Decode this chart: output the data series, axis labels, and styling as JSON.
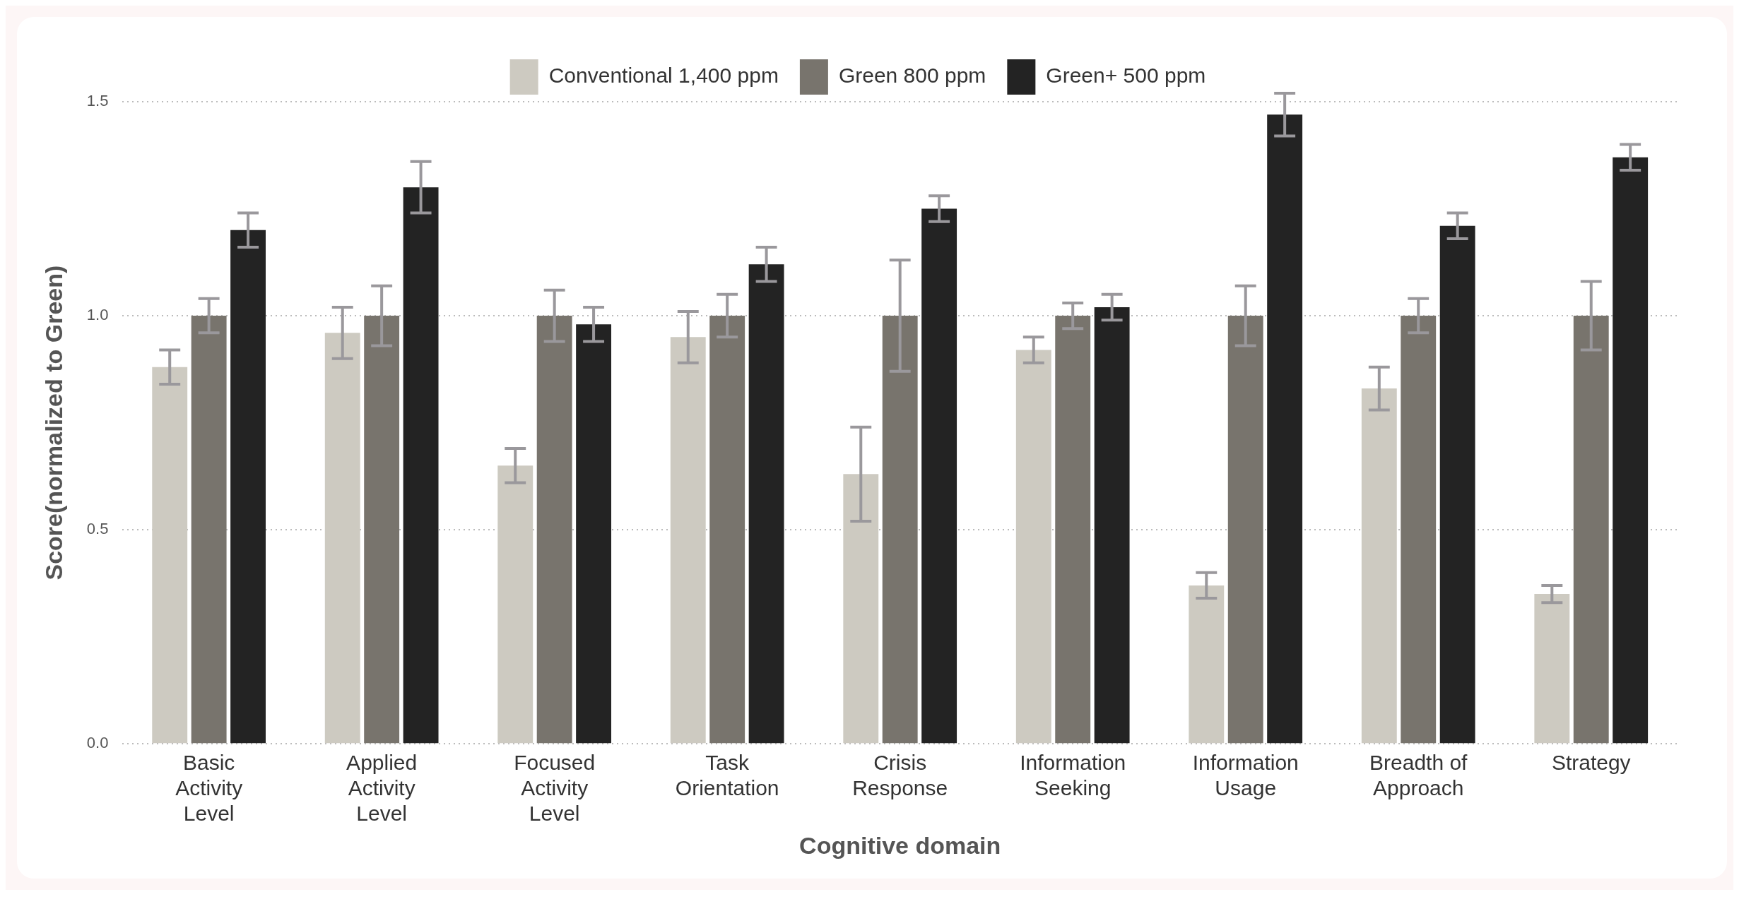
{
  "chart_data": {
    "type": "bar",
    "xlabel": "Cognitive domain",
    "ylabel": "Score(normalized to Green)",
    "categories": [
      "Basic Activity Level",
      "Applied Activity Level",
      "Focused Activity Level",
      "Task Orientation",
      "Crisis Response",
      "Information Seeking",
      "Information Usage",
      "Breadth of Approach",
      "Strategy"
    ],
    "series": [
      {
        "name": "Conventional 1,400 ppm",
        "color": "#cdcac1",
        "values": [
          0.88,
          0.96,
          0.65,
          0.95,
          0.63,
          0.92,
          0.37,
          0.83,
          0.35
        ],
        "errors": [
          0.04,
          0.06,
          0.04,
          0.06,
          0.11,
          0.03,
          0.03,
          0.05,
          0.02
        ]
      },
      {
        "name": "Green 800 ppm",
        "color": "#78746d",
        "values": [
          1.0,
          1.0,
          1.0,
          1.0,
          1.0,
          1.0,
          1.0,
          1.0,
          1.0
        ],
        "errors": [
          0.04,
          0.07,
          0.06,
          0.05,
          0.13,
          0.03,
          0.07,
          0.04,
          0.08
        ]
      },
      {
        "name": "Green+ 500 ppm",
        "color": "#232323",
        "values": [
          1.2,
          1.3,
          0.98,
          1.12,
          1.25,
          1.02,
          1.47,
          1.21,
          1.37
        ],
        "errors": [
          0.04,
          0.06,
          0.04,
          0.04,
          0.03,
          0.03,
          0.05,
          0.03,
          0.03
        ]
      }
    ],
    "ylim": [
      0,
      1.5
    ],
    "yticks": [
      {
        "value": 0,
        "label": "0.0"
      },
      {
        "value": 0.5,
        "label": "0.5"
      },
      {
        "value": 1,
        "label": "1.0"
      },
      {
        "value": 1.5,
        "label": "1.5"
      }
    ],
    "grid": "y",
    "legend": "top"
  }
}
